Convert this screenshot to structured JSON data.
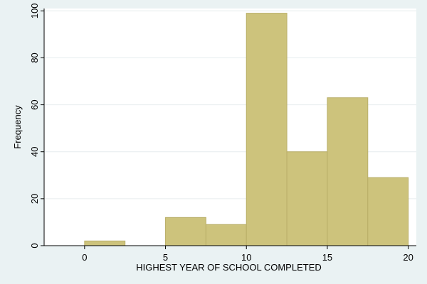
{
  "chart_data": {
    "type": "bar",
    "subtype": "histogram",
    "xlabel": "HIGHEST YEAR OF SCHOOL COMPLETED",
    "ylabel": "Frequency",
    "xlim": [
      -2.5,
      20.5
    ],
    "ylim": [
      0,
      101
    ],
    "x_ticks": [
      0,
      5,
      10,
      15,
      20
    ],
    "y_ticks": [
      0,
      20,
      40,
      60,
      80,
      100
    ],
    "grid": true,
    "bins": [
      {
        "start": 0,
        "end": 2.5,
        "value": 2
      },
      {
        "start": 5,
        "end": 7.5,
        "value": 12
      },
      {
        "start": 7.5,
        "end": 10,
        "value": 9
      },
      {
        "start": 10,
        "end": 12.5,
        "value": 99
      },
      {
        "start": 12.5,
        "end": 15,
        "value": 40
      },
      {
        "start": 15,
        "end": 17.5,
        "value": 63
      },
      {
        "start": 17.5,
        "end": 20,
        "value": 29
      }
    ],
    "colors": {
      "bar_fill": "#cdc37c",
      "bar_stroke": "#b9ae68",
      "plot_bg": "#ffffff",
      "outer_bg": "#eaf2f3",
      "grid": "#e6ecee",
      "axis": "#000000"
    }
  }
}
